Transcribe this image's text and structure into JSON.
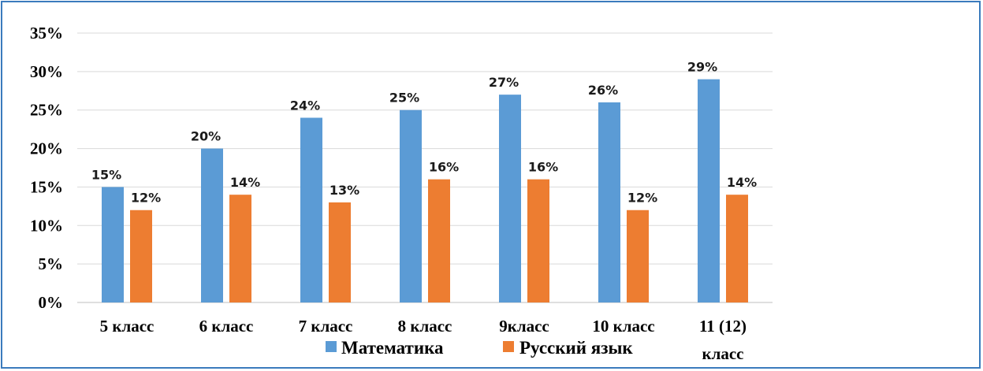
{
  "chart_data": {
    "type": "bar",
    "categories": [
      "5 класс",
      "6 класс",
      "7 класс",
      "8 класс",
      "9класс",
      "10 класс",
      "11 (12) класс"
    ],
    "series": [
      {
        "name": "Математика",
        "color": "#5b9bd5",
        "values": [
          15,
          20,
          24,
          25,
          27,
          26,
          29
        ],
        "labels": [
          "15%",
          "20%",
          "24%",
          "25%",
          "27%",
          "26%",
          "29%"
        ]
      },
      {
        "name": "Русский язык",
        "color": "#ed7d31",
        "values": [
          12,
          14,
          13,
          16,
          16,
          12,
          14
        ],
        "labels": [
          "12%",
          "14%",
          "13%",
          "16%",
          "16%",
          "12%",
          "14%"
        ]
      }
    ],
    "ylim": [
      0,
      35
    ],
    "yticks": [
      "0%",
      "5%",
      "10%",
      "15%",
      "20%",
      "25%",
      "30%",
      "35%"
    ],
    "grid": true,
    "legend_placement": "bottom",
    "title": "",
    "xlabel": "",
    "ylabel": ""
  }
}
